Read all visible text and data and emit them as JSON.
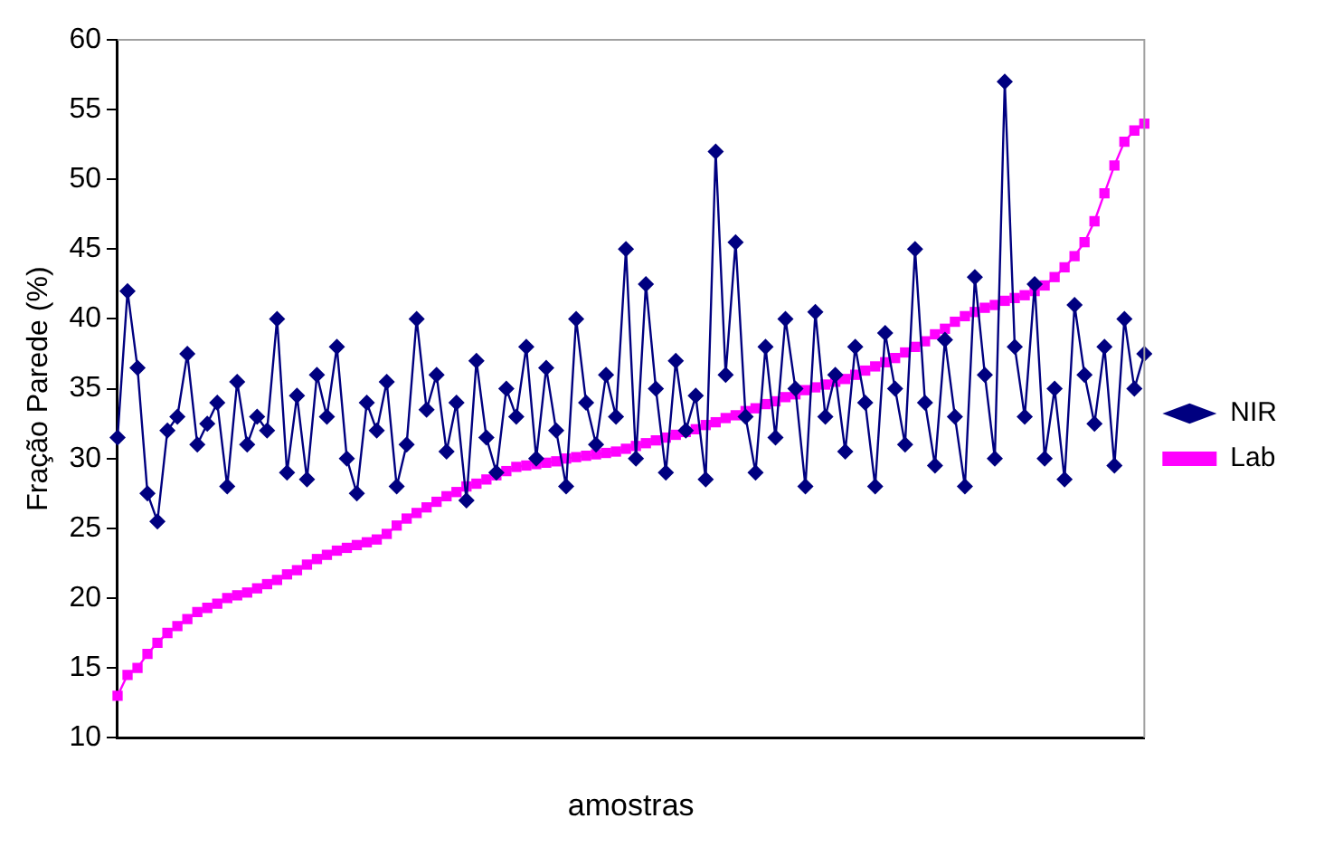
{
  "chart_data": {
    "type": "line",
    "xlabel": "amostras",
    "ylabel": "Fração Parede (%)",
    "categories": [
      null,
      null,
      null,
      null,
      null,
      null,
      null,
      null,
      null,
      null,
      null,
      null,
      null,
      null,
      null,
      null,
      null,
      null,
      null,
      null,
      null,
      null,
      null,
      null,
      null,
      null,
      null,
      null,
      null,
      null,
      null,
      null,
      null,
      null,
      null,
      null,
      null,
      null,
      null,
      null,
      null,
      null,
      null,
      null,
      null,
      null,
      null,
      null,
      null,
      null,
      null,
      null,
      null,
      null,
      null,
      null,
      null,
      null,
      null,
      null,
      null,
      null,
      null,
      null,
      null,
      null,
      null,
      null,
      null,
      null,
      null,
      null,
      null,
      null,
      null,
      null,
      null,
      null,
      null,
      null,
      null,
      null,
      null,
      null,
      null,
      null,
      null,
      null,
      null,
      null,
      null,
      null,
      null,
      null,
      null,
      null,
      null,
      null,
      null,
      null,
      null,
      null,
      null,
      null
    ],
    "series": [
      {
        "name": "NIR",
        "color": "#000080",
        "marker": "diamond",
        "values": [
          31.5,
          42,
          36.5,
          27.5,
          25.5,
          32,
          33,
          37.5,
          31,
          32.5,
          34,
          28,
          35.5,
          31,
          33,
          32,
          40,
          29,
          34.5,
          28.5,
          36,
          33,
          38,
          30,
          27.5,
          34,
          32,
          35.5,
          28,
          31,
          40,
          33.5,
          36,
          30.5,
          34,
          27,
          37,
          31.5,
          29,
          35,
          33,
          38,
          30,
          36.5,
          32,
          28,
          40,
          34,
          31,
          36,
          33,
          45,
          30,
          42.5,
          35,
          29,
          37,
          32,
          34.5,
          28.5,
          52,
          36,
          45.5,
          33,
          29,
          38,
          31.5,
          40,
          35,
          28,
          40.5,
          33,
          36,
          30.5,
          38,
          34,
          28,
          39,
          35,
          31,
          45,
          34,
          29.5,
          38.5,
          33,
          28,
          43,
          36,
          30,
          57,
          38,
          33,
          42.5,
          30,
          35,
          28.5,
          41,
          36,
          32.5,
          38,
          29.5,
          40,
          35,
          37.5
        ]
      },
      {
        "name": "Lab",
        "color": "#ff00ff",
        "marker": "square",
        "values": [
          13,
          14.5,
          15,
          16,
          16.8,
          17.5,
          18,
          18.5,
          19,
          19.3,
          19.6,
          20,
          20.2,
          20.4,
          20.7,
          21,
          21.3,
          21.7,
          22,
          22.4,
          22.8,
          23.1,
          23.4,
          23.6,
          23.8,
          24,
          24.2,
          24.6,
          25.2,
          25.7,
          26.1,
          26.5,
          26.9,
          27.3,
          27.6,
          28,
          28.2,
          28.5,
          28.8,
          29.1,
          29.4,
          29.5,
          29.6,
          29.7,
          29.8,
          30,
          30.1,
          30.2,
          30.3,
          30.4,
          30.5,
          30.7,
          30.9,
          31.1,
          31.3,
          31.5,
          31.7,
          31.9,
          32.1,
          32.4,
          32.6,
          32.9,
          33.1,
          33.4,
          33.6,
          33.9,
          34.1,
          34.4,
          34.6,
          34.9,
          35.1,
          35.3,
          35.5,
          35.7,
          36,
          36.3,
          36.6,
          36.9,
          37.2,
          37.6,
          38,
          38.4,
          38.9,
          39.3,
          39.8,
          40.2,
          40.5,
          40.8,
          41,
          41.3,
          41.5,
          41.7,
          42,
          42.4,
          43,
          43.7,
          44.5,
          45.5,
          47,
          49,
          51,
          52.7,
          53.5,
          54
        ]
      }
    ],
    "ylim": [
      10,
      60
    ],
    "yticks": [
      10,
      15,
      20,
      25,
      30,
      35,
      40,
      45,
      50,
      55,
      60
    ],
    "grid": false,
    "legend": "right",
    "tick_labels": "y"
  }
}
